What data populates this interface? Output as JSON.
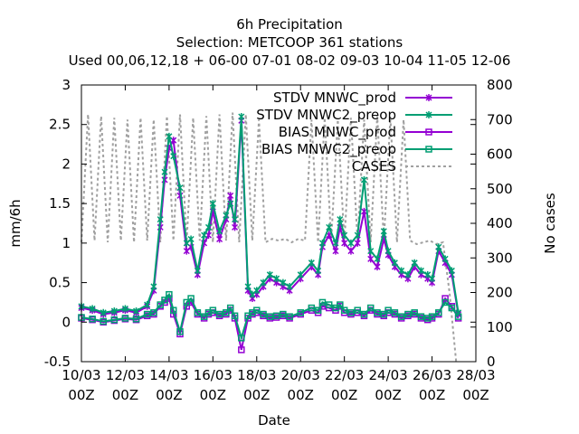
{
  "chart_data": {
    "type": "line",
    "title": "6h Precipitation",
    "subtitle": "Selection: METCOOP     361 stations",
    "subtitle2": "Used  00,06,12,18 + 06-00 07-01 08-02 09-03 10-04 11-05 12-06",
    "xlabel": "Date",
    "ylabel": "mm/6h",
    "y2label": "No cases",
    "ylim": [
      -0.5,
      3
    ],
    "y2lim": [
      0,
      800
    ],
    "xlim": [
      0,
      18
    ],
    "grid": false,
    "legend_position": "top-right",
    "yticks": [
      "-0.5",
      "0",
      "0.5",
      "1",
      "1.5",
      "2",
      "2.5",
      "3"
    ],
    "y2ticks": [
      "0",
      "100",
      "200",
      "300",
      "400",
      "500",
      "600",
      "700",
      "800"
    ],
    "xticks": [
      {
        "x": 0,
        "top": "10/03",
        "bottom": "00Z"
      },
      {
        "x": 2,
        "top": "12/03",
        "bottom": "00Z"
      },
      {
        "x": 4,
        "top": "14/03",
        "bottom": "00Z"
      },
      {
        "x": 6,
        "top": "16/03",
        "bottom": "00Z"
      },
      {
        "x": 8,
        "top": "18/03",
        "bottom": "00Z"
      },
      {
        "x": 10,
        "top": "20/03",
        "bottom": "00Z"
      },
      {
        "x": 12,
        "top": "22/03",
        "bottom": "00Z"
      },
      {
        "x": 14,
        "top": "24/03",
        "bottom": "00Z"
      },
      {
        "x": 16,
        "top": "26/03",
        "bottom": "00Z"
      },
      {
        "x": 18,
        "top": "28/03",
        "bottom": "00Z"
      }
    ],
    "colors": {
      "mnwc": "#9400d3",
      "mnwc2": "#009e73",
      "cases": "#a0a0a0"
    },
    "series": [
      {
        "name": "STDV MNWC_prod",
        "axis": "y1",
        "marker": "cross",
        "color": "#9400d3",
        "x": [
          0.0,
          0.5,
          1.0,
          1.5,
          2.0,
          2.5,
          3.0,
          3.3,
          3.6,
          3.8,
          4.0,
          4.2,
          4.5,
          4.8,
          5.0,
          5.3,
          5.6,
          5.8,
          6.0,
          6.3,
          6.6,
          6.8,
          7.0,
          7.3,
          7.6,
          7.8,
          8.0,
          8.3,
          8.6,
          8.9,
          9.2,
          9.5,
          10.0,
          10.5,
          10.8,
          11.0,
          11.3,
          11.6,
          11.8,
          12.0,
          12.3,
          12.6,
          12.9,
          13.2,
          13.5,
          13.8,
          14.0,
          14.3,
          14.6,
          14.9,
          15.2,
          15.5,
          15.8,
          16.0,
          16.3,
          16.6,
          16.9,
          17.2
        ],
        "y": [
          0.18,
          0.15,
          0.1,
          0.12,
          0.15,
          0.12,
          0.2,
          0.4,
          1.2,
          1.8,
          2.2,
          2.3,
          1.6,
          0.9,
          0.95,
          0.6,
          1.0,
          1.1,
          1.4,
          1.05,
          1.3,
          1.6,
          1.2,
          2.55,
          0.4,
          0.3,
          0.35,
          0.45,
          0.55,
          0.5,
          0.45,
          0.4,
          0.55,
          0.7,
          0.6,
          0.95,
          1.1,
          0.9,
          1.2,
          1.0,
          0.9,
          1.0,
          1.4,
          0.8,
          0.7,
          1.05,
          0.85,
          0.7,
          0.6,
          0.55,
          0.7,
          0.6,
          0.55,
          0.5,
          0.9,
          0.75,
          0.6,
          0.1
        ]
      },
      {
        "name": "STDV MNWC2_preop",
        "axis": "y1",
        "marker": "cross",
        "color": "#009e73",
        "x": [
          0.0,
          0.5,
          1.0,
          1.5,
          2.0,
          2.5,
          3.0,
          3.3,
          3.6,
          3.8,
          4.0,
          4.2,
          4.5,
          4.8,
          5.0,
          5.3,
          5.6,
          5.8,
          6.0,
          6.3,
          6.6,
          6.8,
          7.0,
          7.3,
          7.6,
          7.8,
          8.0,
          8.3,
          8.6,
          8.9,
          9.2,
          9.5,
          10.0,
          10.5,
          10.8,
          11.0,
          11.3,
          11.6,
          11.8,
          12.0,
          12.3,
          12.6,
          12.9,
          13.2,
          13.5,
          13.8,
          14.0,
          14.3,
          14.6,
          14.9,
          15.2,
          15.5,
          15.8,
          16.0,
          16.3,
          16.6,
          16.9,
          17.2
        ],
        "y": [
          0.2,
          0.17,
          0.12,
          0.14,
          0.17,
          0.14,
          0.22,
          0.45,
          1.3,
          1.9,
          2.35,
          2.1,
          1.7,
          1.0,
          1.05,
          0.65,
          1.1,
          1.2,
          1.5,
          1.15,
          1.35,
          1.5,
          1.3,
          2.6,
          0.45,
          0.35,
          0.4,
          0.5,
          0.6,
          0.55,
          0.5,
          0.45,
          0.6,
          0.75,
          0.65,
          1.0,
          1.2,
          1.0,
          1.3,
          1.1,
          1.0,
          1.1,
          1.8,
          0.9,
          0.8,
          1.15,
          0.9,
          0.75,
          0.65,
          0.6,
          0.75,
          0.65,
          0.6,
          0.55,
          0.95,
          0.8,
          0.65,
          0.12
        ]
      },
      {
        "name": "BIAS MNWC_prod",
        "axis": "y1",
        "marker": "square",
        "color": "#9400d3",
        "x": [
          0.0,
          0.5,
          1.0,
          1.5,
          2.0,
          2.5,
          3.0,
          3.3,
          3.6,
          3.8,
          4.0,
          4.2,
          4.5,
          4.8,
          5.0,
          5.3,
          5.6,
          5.8,
          6.0,
          6.3,
          6.6,
          6.8,
          7.0,
          7.3,
          7.6,
          7.8,
          8.0,
          8.3,
          8.6,
          8.9,
          9.2,
          9.5,
          10.0,
          10.5,
          10.8,
          11.0,
          11.3,
          11.6,
          11.8,
          12.0,
          12.3,
          12.6,
          12.9,
          13.2,
          13.5,
          13.8,
          14.0,
          14.3,
          14.6,
          14.9,
          15.2,
          15.5,
          15.8,
          16.0,
          16.3,
          16.6,
          16.9,
          17.2
        ],
        "y": [
          0.05,
          0.03,
          0.0,
          0.02,
          0.04,
          0.03,
          0.08,
          0.1,
          0.2,
          0.25,
          0.3,
          0.1,
          -0.15,
          0.2,
          0.25,
          0.1,
          0.05,
          0.1,
          0.12,
          0.08,
          0.1,
          0.15,
          0.05,
          -0.35,
          0.05,
          0.1,
          0.12,
          0.08,
          0.05,
          0.06,
          0.08,
          0.05,
          0.1,
          0.15,
          0.12,
          0.2,
          0.18,
          0.15,
          0.2,
          0.12,
          0.1,
          0.12,
          0.08,
          0.15,
          0.1,
          0.08,
          0.12,
          0.1,
          0.05,
          0.08,
          0.1,
          0.05,
          0.03,
          0.05,
          0.1,
          0.3,
          0.2,
          0.05
        ]
      },
      {
        "name": "BIAS MNWC2_preop",
        "axis": "y1",
        "marker": "square",
        "color": "#009e73",
        "x": [
          0.0,
          0.5,
          1.0,
          1.5,
          2.0,
          2.5,
          3.0,
          3.3,
          3.6,
          3.8,
          4.0,
          4.2,
          4.5,
          4.8,
          5.0,
          5.3,
          5.6,
          5.8,
          6.0,
          6.3,
          6.6,
          6.8,
          7.0,
          7.3,
          7.6,
          7.8,
          8.0,
          8.3,
          8.6,
          8.9,
          9.2,
          9.5,
          10.0,
          10.5,
          10.8,
          11.0,
          11.3,
          11.6,
          11.8,
          12.0,
          12.3,
          12.6,
          12.9,
          13.2,
          13.5,
          13.8,
          14.0,
          14.3,
          14.6,
          14.9,
          15.2,
          15.5,
          15.8,
          16.0,
          16.3,
          16.6,
          16.9,
          17.2
        ],
        "y": [
          0.06,
          0.04,
          0.01,
          0.03,
          0.05,
          0.04,
          0.1,
          0.12,
          0.22,
          0.28,
          0.35,
          0.15,
          -0.12,
          0.25,
          0.3,
          0.12,
          0.07,
          0.12,
          0.15,
          0.1,
          0.12,
          0.18,
          0.08,
          -0.2,
          0.08,
          0.12,
          0.15,
          0.1,
          0.07,
          0.08,
          0.1,
          0.07,
          0.12,
          0.18,
          0.15,
          0.25,
          0.22,
          0.18,
          0.22,
          0.15,
          0.12,
          0.15,
          0.1,
          0.18,
          0.12,
          0.1,
          0.15,
          0.12,
          0.07,
          0.1,
          0.12,
          0.07,
          0.05,
          0.07,
          0.12,
          0.25,
          0.18,
          0.07
        ]
      }
    ],
    "cases": {
      "name": "CASES",
      "axis": "y2",
      "color": "#a0a0a0",
      "x": [
        0.0,
        0.3,
        0.6,
        0.9,
        1.2,
        1.5,
        1.8,
        2.1,
        2.4,
        2.7,
        3.0,
        3.3,
        3.6,
        3.9,
        4.2,
        4.5,
        4.8,
        5.1,
        5.4,
        5.7,
        6.0,
        6.3,
        6.6,
        6.9,
        7.2,
        7.5,
        7.8,
        8.1,
        8.4,
        8.7,
        9.0,
        9.3,
        9.6,
        9.9,
        10.2,
        10.5,
        10.8,
        11.1,
        11.4,
        11.7,
        12.0,
        12.3,
        12.6,
        12.9,
        13.2,
        13.5,
        13.8,
        14.1,
        14.4,
        14.7,
        15.0,
        15.3,
        15.6,
        15.9,
        16.2,
        16.5,
        16.8,
        17.1
      ],
      "y": [
        345,
        715,
        350,
        710,
        345,
        705,
        350,
        700,
        345,
        705,
        350,
        700,
        345,
        710,
        350,
        715,
        345,
        705,
        350,
        710,
        345,
        715,
        350,
        720,
        345,
        715,
        350,
        700,
        345,
        355,
        350,
        355,
        345,
        355,
        350,
        700,
        345,
        705,
        350,
        700,
        345,
        705,
        350,
        700,
        345,
        710,
        350,
        705,
        345,
        700,
        350,
        340,
        345,
        350,
        340,
        345,
        200,
        0
      ]
    }
  }
}
